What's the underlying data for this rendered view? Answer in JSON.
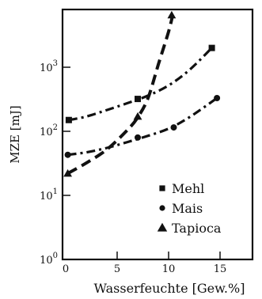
{
  "chart_data": {
    "type": "line",
    "xlabel": "Wasserfeuchte [Gew.%]",
    "ylabel": "MZE [mJ]",
    "xlim": [
      0,
      16
    ],
    "ylim": [
      1,
      10000
    ],
    "yscale": "log",
    "grid": false,
    "legend_position": "bottom-right",
    "x_ticks": [
      {
        "value": 0,
        "label": "0"
      },
      {
        "value": 5,
        "label": "5"
      },
      {
        "value": 10,
        "label": "10"
      },
      {
        "value": 15,
        "label": "15"
      }
    ],
    "y_ticks": [
      {
        "value": 1,
        "base": "10",
        "exp": "0"
      },
      {
        "value": 10,
        "base": "10",
        "exp": "1"
      },
      {
        "value": 100,
        "base": "10",
        "exp": "2"
      },
      {
        "value": 1000,
        "base": "10",
        "exp": "3"
      }
    ],
    "series": [
      {
        "name": "Mehl",
        "marker": "square",
        "dash": "dashdot",
        "x": [
          0.3,
          2,
          4,
          6,
          8,
          10,
          12,
          14.2
        ],
        "y": [
          150,
          170,
          215,
          275,
          360,
          520,
          900,
          2000
        ],
        "markers": [
          [
            0.3,
            150
          ],
          [
            7,
            320
          ],
          [
            14.2,
            2000
          ]
        ]
      },
      {
        "name": "Mais",
        "marker": "circle",
        "dash": "dashdot",
        "x": [
          0.2,
          2,
          4,
          6,
          8,
          10,
          12,
          14.7
        ],
        "y": [
          43,
          47,
          55,
          68,
          85,
          110,
          165,
          330
        ],
        "markers": [
          [
            0.2,
            43
          ],
          [
            7,
            80
          ],
          [
            10.5,
            115
          ],
          [
            14.7,
            330
          ]
        ]
      },
      {
        "name": "Tapioca",
        "marker": "triangle",
        "dash": "dash",
        "x": [
          0.2,
          2,
          4,
          6,
          7,
          8,
          9,
          10,
          10.4
        ],
        "y": [
          22,
          32,
          52,
          105,
          165,
          330,
          1100,
          3600,
          6500
        ],
        "markers": [
          [
            0.2,
            22
          ],
          [
            7,
            170
          ],
          [
            10.3,
            6500
          ]
        ]
      }
    ]
  }
}
